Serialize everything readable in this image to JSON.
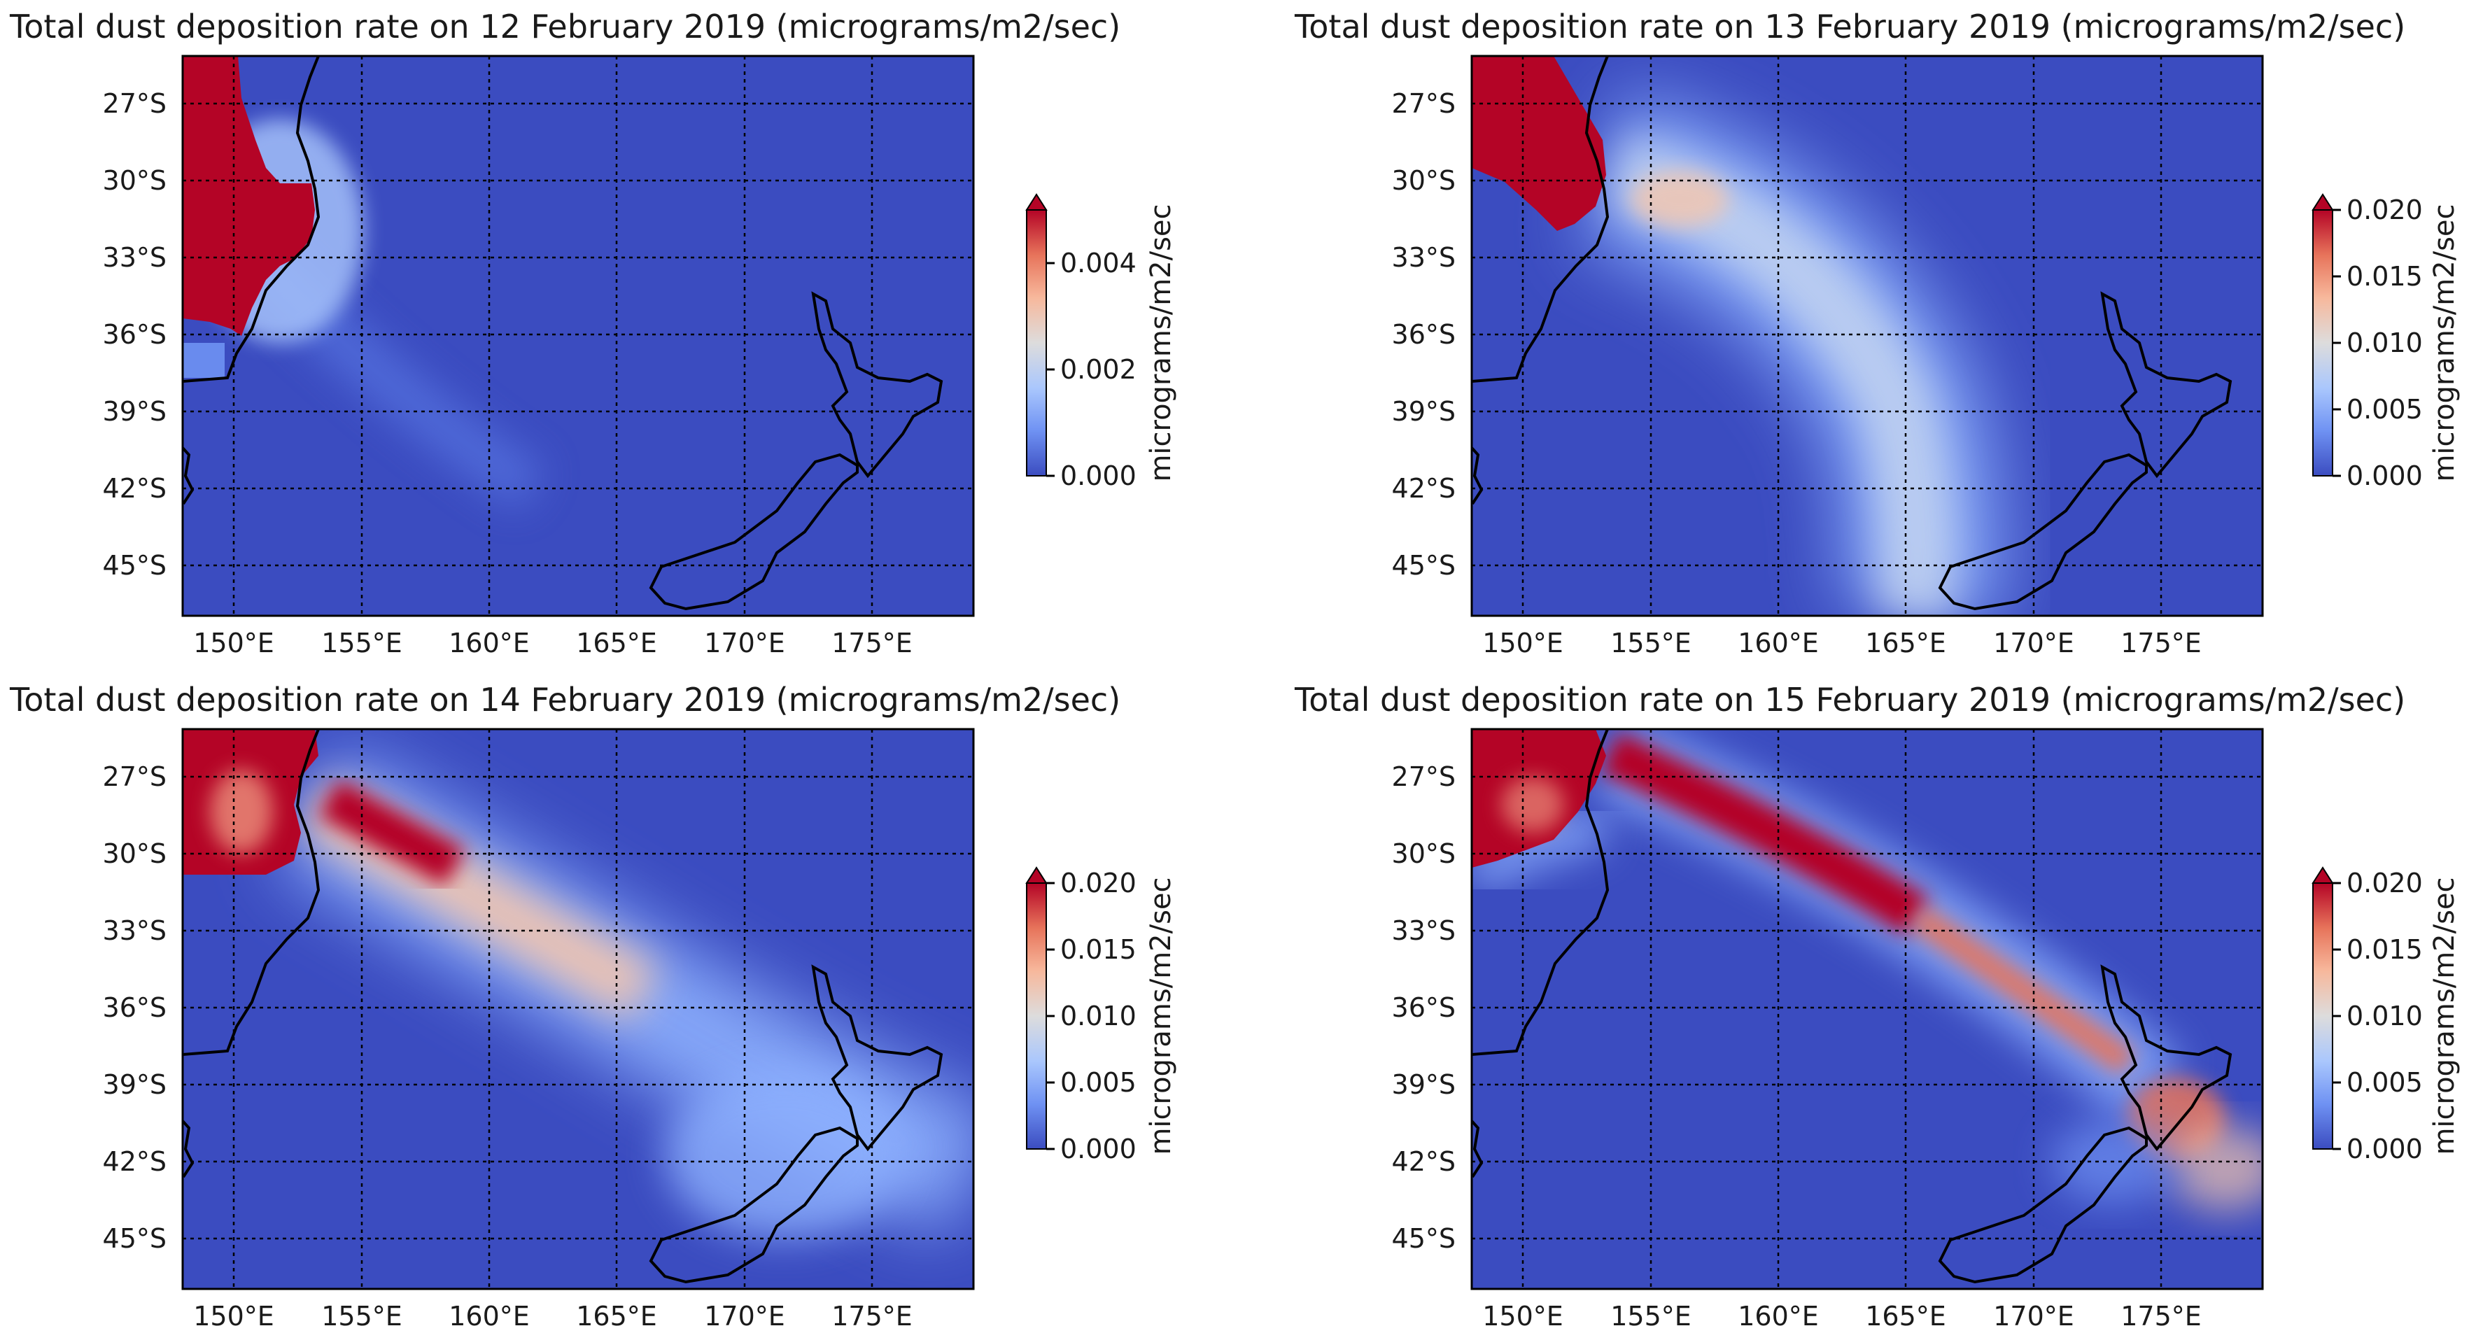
{
  "figure": {
    "panels": [
      {
        "title": "Total dust deposition rate on 12 February 2019 (micrograms/m2/sec)",
        "lat_ticks": [
          "27°S",
          "30°S",
          "33°S",
          "36°S",
          "39°S",
          "42°S",
          "45°S"
        ],
        "lon_ticks": [
          "150°E",
          "155°E",
          "160°E",
          "165°E",
          "170°E",
          "175°E"
        ],
        "colorbar": {
          "label": "micrograms/m2/sec",
          "ticks": [
            "0.000",
            "0.002",
            "0.004"
          ],
          "tick_values": [
            0,
            0.002,
            0.004
          ],
          "max": 0.005,
          "extend": "max"
        }
      },
      {
        "title": "Total dust deposition rate on 13 February 2019 (micrograms/m2/sec)",
        "lat_ticks": [
          "27°S",
          "30°S",
          "33°S",
          "36°S",
          "39°S",
          "42°S",
          "45°S"
        ],
        "lon_ticks": [
          "150°E",
          "155°E",
          "160°E",
          "165°E",
          "170°E",
          "175°E"
        ],
        "colorbar": {
          "label": "micrograms/m2/sec",
          "ticks": [
            "0.000",
            "0.005",
            "0.010",
            "0.015",
            "0.020"
          ],
          "tick_values": [
            0,
            0.005,
            0.01,
            0.015,
            0.02
          ],
          "max": 0.02,
          "extend": "max"
        }
      },
      {
        "title": "Total dust deposition rate on 14 February 2019 (micrograms/m2/sec)",
        "lat_ticks": [
          "27°S",
          "30°S",
          "33°S",
          "36°S",
          "39°S",
          "42°S",
          "45°S"
        ],
        "lon_ticks": [
          "150°E",
          "155°E",
          "160°E",
          "165°E",
          "170°E",
          "175°E"
        ],
        "colorbar": {
          "label": "micrograms/m2/sec",
          "ticks": [
            "0.000",
            "0.005",
            "0.010",
            "0.015",
            "0.020"
          ],
          "tick_values": [
            0,
            0.005,
            0.01,
            0.015,
            0.02
          ],
          "max": 0.02,
          "extend": "max"
        }
      },
      {
        "title": "Total dust deposition rate on 15 February 2019 (micrograms/m2/sec)",
        "lat_ticks": [
          "27°S",
          "30°S",
          "33°S",
          "36°S",
          "39°S",
          "42°S",
          "45°S"
        ],
        "lon_ticks": [
          "150°E",
          "155°E",
          "160°E",
          "165°E",
          "170°E",
          "175°E"
        ],
        "colorbar": {
          "label": "micrograms/m2/sec",
          "ticks": [
            "0.000",
            "0.005",
            "0.010",
            "0.015",
            "0.020"
          ],
          "tick_values": [
            0,
            0.005,
            0.01,
            0.015,
            0.02
          ],
          "max": 0.02,
          "extend": "max"
        }
      }
    ],
    "colormap": [
      "#3b4cc0",
      "#6f92f3",
      "#aac7fd",
      "#dddcdc",
      "#f7b89c",
      "#e7745b",
      "#b40426"
    ],
    "background_color": "#3b4cc0",
    "saturated_color": "#b40426",
    "coastline_color": "#000000"
  }
}
